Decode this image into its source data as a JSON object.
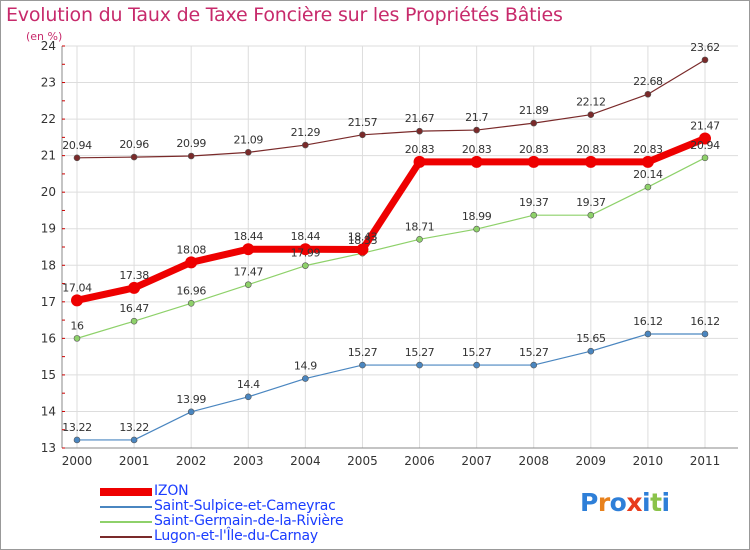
{
  "title": "Evolution du Taux de Taxe Foncière sur les Propriétés Bâties",
  "unit": "(en %)",
  "brand": {
    "text": "Proxiti",
    "letters": [
      "P",
      "r",
      "o",
      "x",
      "i",
      "t",
      "i"
    ],
    "colors": [
      "#2e7fd8",
      "#e8811c",
      "#2e7fd8",
      "#e83c1c",
      "#2e7fd8",
      "#8bc34a",
      "#2e7fd8"
    ]
  },
  "chart_data": {
    "type": "line",
    "title": "Evolution du Taux de Taxe Foncière sur les Propriétés Bâties",
    "ylabel": "(en %)",
    "xlabel": "",
    "x": [
      "2000",
      "2001",
      "2002",
      "2003",
      "2004",
      "2005",
      "2006",
      "2007",
      "2008",
      "2009",
      "2010",
      "2011"
    ],
    "ylim": [
      13,
      24
    ],
    "yticks": [
      13,
      14,
      15,
      16,
      17,
      18,
      19,
      20,
      21,
      22,
      23,
      24
    ],
    "grid": true,
    "legend": "bottom-left",
    "series": [
      {
        "name": "Lugon-et-l'Île-du-Carnay",
        "color": "#7a2a2a",
        "width": 1.2,
        "radius": 3,
        "values": [
          20.94,
          20.96,
          20.99,
          21.09,
          21.29,
          21.57,
          21.67,
          21.7,
          21.89,
          22.12,
          22.68,
          23.62
        ],
        "labels": [
          "20.94",
          "20.96",
          "20.99",
          "21.09",
          "21.29",
          "21.57",
          "21.67",
          "21.7",
          "21.89",
          "22.12",
          "22.68",
          "23.62"
        ]
      },
      {
        "name": "Saint-Germain-de-la-Rivière",
        "color": "#8ed16a",
        "width": 1.2,
        "radius": 3,
        "values": [
          16,
          16.47,
          16.96,
          17.47,
          17.99,
          18.33,
          18.71,
          18.99,
          19.37,
          19.37,
          20.14,
          20.94
        ],
        "labels": [
          "16",
          "16.47",
          "16.96",
          "17.47",
          "17.99",
          "18.33",
          "18.71",
          "18.99",
          "19.37",
          "19.37",
          "20.14",
          "20.94"
        ]
      },
      {
        "name": "Saint-Sulpice-et-Cameyrac",
        "color": "#4a86c0",
        "width": 1.2,
        "radius": 3,
        "values": [
          13.22,
          13.22,
          13.99,
          14.4,
          14.9,
          15.27,
          15.27,
          15.27,
          15.27,
          15.65,
          16.12,
          16.12
        ],
        "labels": [
          "13.22",
          "13.22",
          "13.99",
          "14.4",
          "14.9",
          "15.27",
          "15.27",
          "15.27",
          "15.27",
          "15.65",
          "16.12",
          "16.12"
        ]
      },
      {
        "name": "IZON",
        "color": "#ee0000",
        "width": 7,
        "radius": 6,
        "values": [
          17.04,
          17.38,
          18.08,
          18.44,
          18.44,
          18.43,
          20.83,
          20.83,
          20.83,
          20.83,
          20.83,
          21.47
        ],
        "labels": [
          "17.04",
          "17.38",
          "18.08",
          "18.44",
          "18.44",
          "18.43",
          "20.83",
          "20.83",
          "20.83",
          "20.83",
          "20.83",
          "21.47"
        ]
      }
    ]
  }
}
